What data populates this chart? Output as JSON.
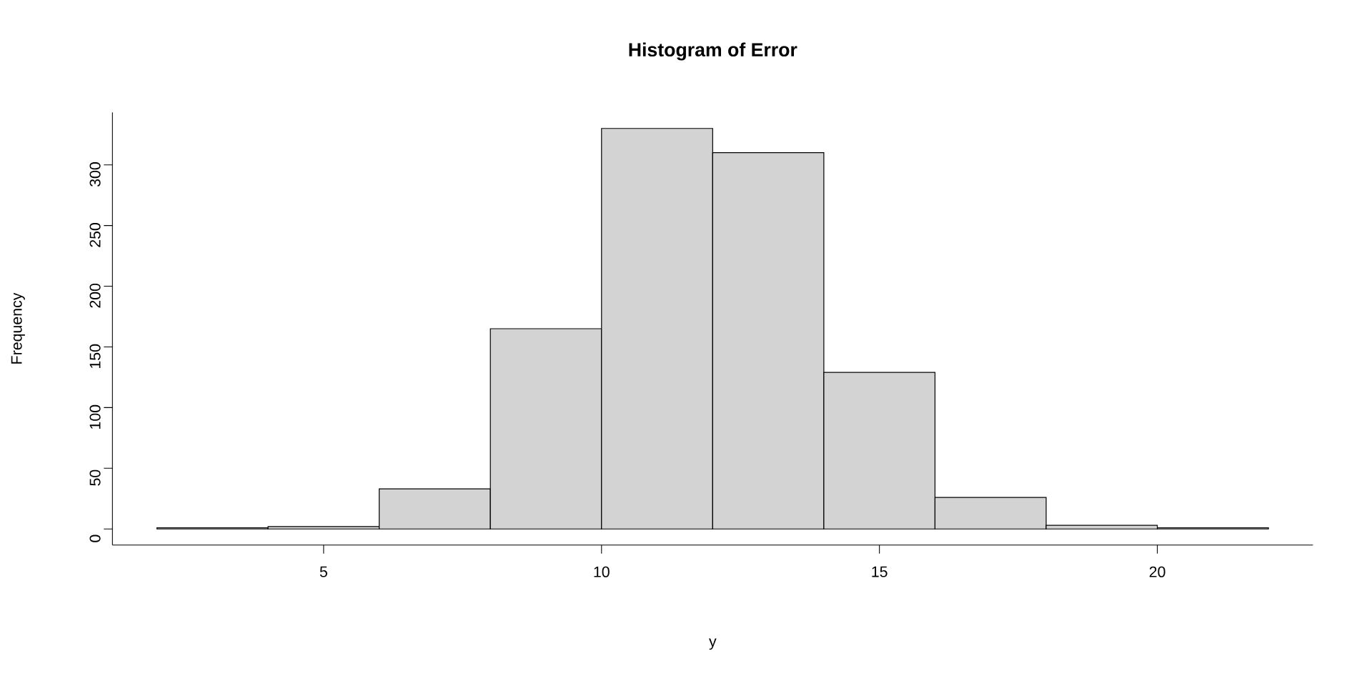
{
  "chart_data": {
    "type": "histogram",
    "title": "Histogram of Error",
    "xlabel": "y",
    "ylabel": "Frequency",
    "bins": [
      2,
      4,
      6,
      8,
      10,
      12,
      14,
      16,
      18,
      20,
      22
    ],
    "values": [
      1,
      2,
      33,
      165,
      330,
      310,
      129,
      26,
      3,
      1
    ],
    "color": "#d3d3d3",
    "xlim": [
      1.2,
      22.8
    ],
    "ylim": [
      -13.2,
      343.2
    ],
    "xticks": [
      5,
      10,
      15,
      20
    ],
    "yticks": [
      0,
      50,
      100,
      150,
      200,
      250,
      300
    ]
  }
}
